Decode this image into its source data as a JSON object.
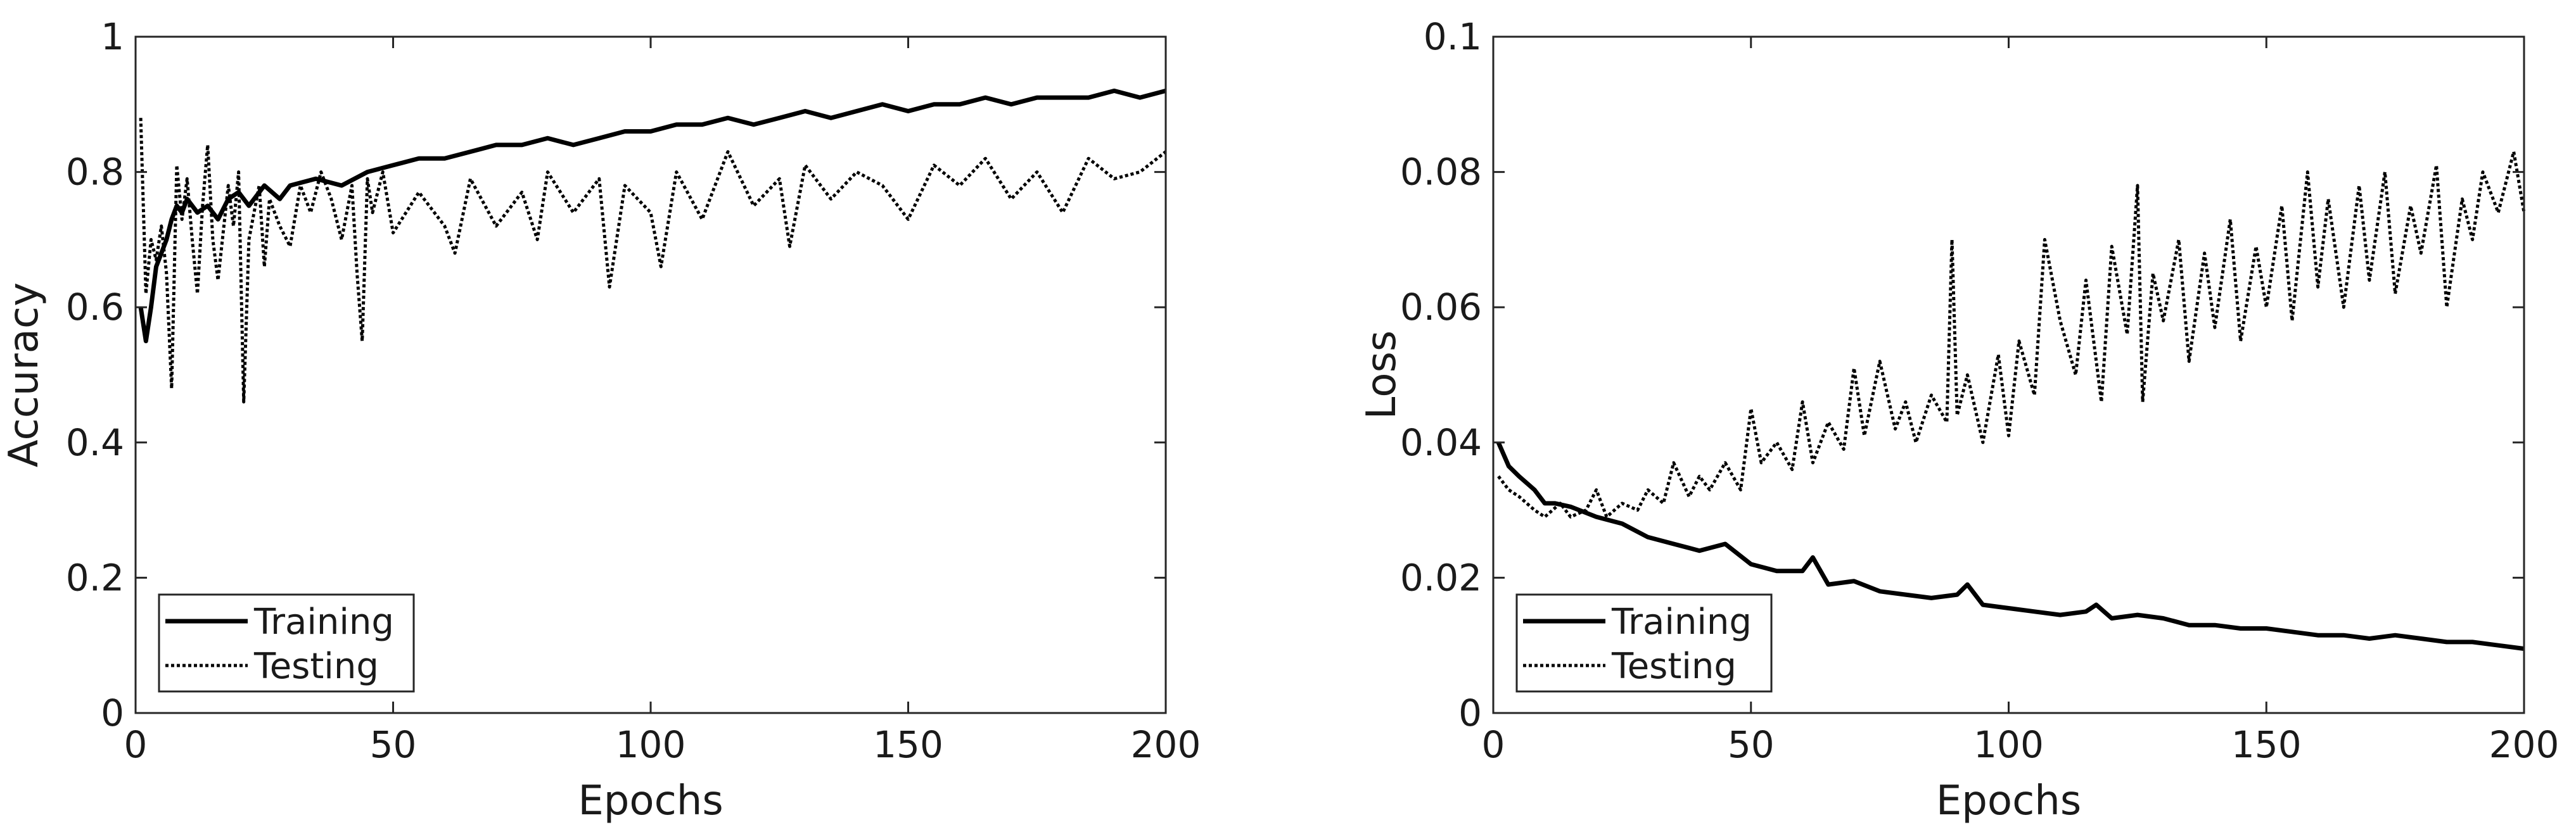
{
  "chart_data": [
    {
      "type": "line",
      "title": "",
      "xlabel": "Epochs",
      "ylabel": "Accuracy",
      "xlim": [
        0,
        200
      ],
      "ylim": [
        0,
        1
      ],
      "xticks": [
        0,
        50,
        100,
        150,
        200
      ],
      "xtick_labels": [
        "0",
        "50",
        "100",
        "150",
        "200"
      ],
      "yticks": [
        0,
        0.2,
        0.4,
        0.6,
        0.8,
        1
      ],
      "ytick_labels": [
        "0",
        "0.2",
        "0.4",
        "0.6",
        "0.8",
        "1"
      ],
      "grid": false,
      "legend_position": "bottom-left",
      "series": [
        {
          "name": "Training",
          "style": "solid",
          "x": [
            1,
            2,
            3,
            4,
            5,
            6,
            7,
            8,
            9,
            10,
            12,
            14,
            16,
            18,
            20,
            22,
            25,
            28,
            30,
            35,
            40,
            45,
            50,
            55,
            60,
            65,
            70,
            75,
            80,
            85,
            90,
            95,
            100,
            105,
            110,
            115,
            120,
            125,
            130,
            135,
            140,
            145,
            150,
            155,
            160,
            165,
            170,
            175,
            180,
            185,
            190,
            195,
            200
          ],
          "y": [
            0.6,
            0.55,
            0.6,
            0.66,
            0.68,
            0.7,
            0.73,
            0.75,
            0.74,
            0.76,
            0.74,
            0.75,
            0.73,
            0.76,
            0.77,
            0.75,
            0.78,
            0.76,
            0.78,
            0.79,
            0.78,
            0.8,
            0.81,
            0.82,
            0.82,
            0.83,
            0.84,
            0.84,
            0.85,
            0.84,
            0.85,
            0.86,
            0.86,
            0.87,
            0.87,
            0.88,
            0.87,
            0.88,
            0.89,
            0.88,
            0.89,
            0.9,
            0.89,
            0.9,
            0.9,
            0.91,
            0.9,
            0.91,
            0.91,
            0.91,
            0.92,
            0.91,
            0.92
          ]
        },
        {
          "name": "Testing",
          "style": "dotted",
          "x": [
            1,
            2,
            3,
            4,
            5,
            6,
            7,
            8,
            9,
            10,
            11,
            12,
            13,
            14,
            15,
            16,
            18,
            19,
            20,
            21,
            22,
            24,
            25,
            26,
            28,
            30,
            32,
            34,
            36,
            38,
            40,
            42,
            43,
            44,
            45,
            46,
            48,
            50,
            55,
            60,
            62,
            65,
            70,
            75,
            78,
            80,
            85,
            90,
            92,
            95,
            100,
            102,
            105,
            110,
            115,
            120,
            125,
            127,
            130,
            135,
            140,
            145,
            150,
            155,
            160,
            165,
            170,
            175,
            180,
            185,
            190,
            195,
            200
          ],
          "y": [
            0.88,
            0.62,
            0.7,
            0.67,
            0.72,
            0.65,
            0.48,
            0.81,
            0.73,
            0.79,
            0.7,
            0.62,
            0.75,
            0.84,
            0.7,
            0.64,
            0.78,
            0.72,
            0.8,
            0.46,
            0.7,
            0.78,
            0.66,
            0.76,
            0.72,
            0.69,
            0.78,
            0.74,
            0.8,
            0.76,
            0.7,
            0.78,
            0.65,
            0.55,
            0.79,
            0.74,
            0.8,
            0.71,
            0.77,
            0.72,
            0.68,
            0.79,
            0.72,
            0.77,
            0.7,
            0.8,
            0.74,
            0.79,
            0.63,
            0.78,
            0.74,
            0.66,
            0.8,
            0.73,
            0.83,
            0.75,
            0.79,
            0.69,
            0.81,
            0.76,
            0.8,
            0.78,
            0.73,
            0.81,
            0.78,
            0.82,
            0.76,
            0.8,
            0.74,
            0.82,
            0.79,
            0.8,
            0.83
          ]
        }
      ]
    },
    {
      "type": "line",
      "title": "",
      "xlabel": "Epochs",
      "ylabel": "Loss",
      "xlim": [
        0,
        200
      ],
      "ylim": [
        0,
        0.1
      ],
      "xticks": [
        0,
        50,
        100,
        150,
        200
      ],
      "xtick_labels": [
        "0",
        "50",
        "100",
        "150",
        "200"
      ],
      "yticks": [
        0,
        0.02,
        0.04,
        0.06,
        0.08,
        0.1
      ],
      "ytick_labels": [
        "0",
        "0.02",
        "0.04",
        "0.06",
        "0.08",
        "0.1"
      ],
      "grid": false,
      "legend_position": "bottom-left",
      "series": [
        {
          "name": "Training",
          "style": "solid",
          "x": [
            1,
            3,
            5,
            8,
            10,
            12,
            15,
            20,
            25,
            30,
            35,
            40,
            45,
            50,
            55,
            60,
            62,
            65,
            70,
            75,
            80,
            85,
            90,
            92,
            95,
            100,
            105,
            110,
            115,
            117,
            120,
            125,
            130,
            135,
            140,
            145,
            150,
            155,
            160,
            165,
            170,
            175,
            180,
            185,
            190,
            195,
            200
          ],
          "y": [
            0.04,
            0.0365,
            0.035,
            0.033,
            0.031,
            0.031,
            0.0305,
            0.029,
            0.028,
            0.026,
            0.025,
            0.024,
            0.025,
            0.022,
            0.021,
            0.021,
            0.023,
            0.019,
            0.0195,
            0.018,
            0.0175,
            0.017,
            0.0175,
            0.019,
            0.016,
            0.0155,
            0.015,
            0.0145,
            0.015,
            0.016,
            0.014,
            0.0145,
            0.014,
            0.013,
            0.013,
            0.0125,
            0.0125,
            0.012,
            0.0115,
            0.0115,
            0.011,
            0.0115,
            0.011,
            0.0105,
            0.0105,
            0.01,
            0.0095
          ]
        },
        {
          "name": "Testing",
          "style": "dotted",
          "x": [
            1,
            3,
            5,
            8,
            10,
            13,
            15,
            18,
            20,
            22,
            25,
            28,
            30,
            33,
            35,
            38,
            40,
            42,
            45,
            48,
            50,
            52,
            55,
            58,
            60,
            62,
            65,
            68,
            70,
            72,
            75,
            78,
            80,
            82,
            85,
            88,
            89,
            90,
            92,
            95,
            98,
            100,
            102,
            105,
            107,
            110,
            113,
            115,
            118,
            120,
            123,
            125,
            126,
            128,
            130,
            133,
            135,
            138,
            140,
            143,
            145,
            148,
            150,
            153,
            155,
            158,
            160,
            162,
            165,
            168,
            170,
            173,
            175,
            178,
            180,
            183,
            185,
            188,
            190,
            192,
            195,
            198,
            200
          ],
          "y": [
            0.035,
            0.033,
            0.032,
            0.03,
            0.029,
            0.031,
            0.029,
            0.03,
            0.033,
            0.029,
            0.031,
            0.03,
            0.033,
            0.031,
            0.037,
            0.032,
            0.035,
            0.033,
            0.037,
            0.033,
            0.045,
            0.037,
            0.04,
            0.036,
            0.046,
            0.037,
            0.043,
            0.039,
            0.051,
            0.041,
            0.052,
            0.042,
            0.046,
            0.04,
            0.047,
            0.043,
            0.07,
            0.044,
            0.05,
            0.04,
            0.053,
            0.041,
            0.055,
            0.047,
            0.07,
            0.058,
            0.05,
            0.064,
            0.046,
            0.069,
            0.056,
            0.078,
            0.046,
            0.065,
            0.058,
            0.07,
            0.052,
            0.068,
            0.057,
            0.073,
            0.055,
            0.069,
            0.06,
            0.075,
            0.058,
            0.08,
            0.063,
            0.076,
            0.06,
            0.078,
            0.064,
            0.08,
            0.062,
            0.075,
            0.068,
            0.081,
            0.06,
            0.076,
            0.07,
            0.08,
            0.074,
            0.083,
            0.074
          ]
        }
      ]
    }
  ]
}
